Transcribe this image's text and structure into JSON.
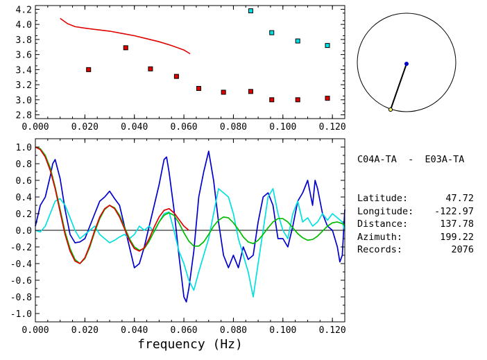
{
  "station_pair": "C04A-TA  -  E03A-TA",
  "info": [
    {
      "label": "Latitude:",
      "value": "47.72"
    },
    {
      "label": "Longitude:",
      "value": "-122.97"
    },
    {
      "label": "Distance:",
      "value": "137.78"
    },
    {
      "label": "Azimuth:",
      "value": "199.22"
    },
    {
      "label": "Records:",
      "value": "2076"
    }
  ],
  "colors": {
    "red": "#e00000",
    "blue": "#0000cc",
    "cyan": "#00e0e0",
    "green": "#00bb00",
    "black": "#000000",
    "yellow": "#ffff66"
  },
  "chart_data": [
    {
      "type": "scatter",
      "xlim": [
        0.0,
        0.125
      ],
      "ylim": [
        2.75,
        4.25
      ],
      "xticks": [
        "0.000",
        "0.020",
        "0.040",
        "0.060",
        "0.080",
        "0.100",
        "0.120"
      ],
      "yticks": [
        "2.8",
        "3.0",
        "3.2",
        "3.4",
        "3.6",
        "3.8",
        "4.0",
        "4.2"
      ],
      "series": [
        {
          "kind": "line",
          "color": "red",
          "x": [
            0.01,
            0.013,
            0.016,
            0.02,
            0.025,
            0.03,
            0.035,
            0.04,
            0.045,
            0.05,
            0.055,
            0.06,
            0.0625
          ],
          "y": [
            4.08,
            4.01,
            3.97,
            3.95,
            3.93,
            3.91,
            3.88,
            3.85,
            3.81,
            3.77,
            3.72,
            3.66,
            3.61
          ]
        },
        {
          "kind": "points",
          "color": "red",
          "x": [
            0.0215,
            0.0365,
            0.0465,
            0.057,
            0.066,
            0.076,
            0.087,
            0.0955,
            0.106,
            0.118
          ],
          "y": [
            3.4,
            3.69,
            3.41,
            3.31,
            3.15,
            3.1,
            3.11,
            3.0,
            3.0,
            3.02
          ]
        },
        {
          "kind": "points",
          "color": "cyan",
          "x": [
            0.087,
            0.0955,
            0.106,
            0.118
          ],
          "y": [
            4.18,
            3.89,
            3.78,
            3.72
          ]
        }
      ]
    },
    {
      "type": "line",
      "xlim": [
        0.0,
        0.125
      ],
      "ylim": [
        -1.1,
        1.1
      ],
      "xticks": [
        "0.000",
        "0.020",
        "0.040",
        "0.060",
        "0.080",
        "0.100",
        "0.120"
      ],
      "yticks": [
        "1.0",
        "0.8",
        "0.6",
        "0.4",
        "0.2",
        "0.0",
        "-0.2",
        "-0.4",
        "-0.6",
        "-0.8",
        "-1.0"
      ],
      "xlabel": "frequency (Hz)",
      "series": [
        {
          "color": "blue",
          "x": [
            0.0,
            0.002,
            0.004,
            0.006,
            0.007,
            0.008,
            0.01,
            0.012,
            0.014,
            0.016,
            0.018,
            0.02,
            0.022,
            0.024,
            0.026,
            0.028,
            0.03,
            0.032,
            0.034,
            0.036,
            0.038,
            0.04,
            0.042,
            0.044,
            0.046,
            0.048,
            0.05,
            0.052,
            0.053,
            0.054,
            0.056,
            0.058,
            0.06,
            0.061,
            0.062,
            0.064,
            0.066,
            0.068,
            0.07,
            0.072,
            0.074,
            0.076,
            0.078,
            0.08,
            0.082,
            0.084,
            0.086,
            0.088,
            0.09,
            0.092,
            0.094,
            0.096,
            0.098,
            0.1,
            0.102,
            0.104,
            0.106,
            0.108,
            0.11,
            0.112,
            0.113,
            0.114,
            0.116,
            0.118,
            0.12,
            0.122,
            0.123,
            0.124,
            0.125
          ],
          "y": [
            0.05,
            0.3,
            0.4,
            0.65,
            0.8,
            0.85,
            0.62,
            0.25,
            -0.05,
            -0.15,
            -0.14,
            -0.1,
            0.05,
            0.2,
            0.35,
            0.4,
            0.47,
            0.38,
            0.3,
            0.05,
            -0.2,
            -0.45,
            -0.4,
            -0.2,
            0.05,
            0.3,
            0.55,
            0.85,
            0.88,
            0.7,
            0.25,
            -0.3,
            -0.8,
            -0.86,
            -0.7,
            -0.25,
            0.4,
            0.7,
            0.95,
            0.6,
            0.1,
            -0.3,
            -0.45,
            -0.3,
            -0.45,
            -0.2,
            -0.35,
            -0.3,
            0.1,
            0.4,
            0.45,
            0.3,
            -0.1,
            -0.1,
            -0.2,
            0.05,
            0.35,
            0.45,
            0.6,
            0.3,
            0.6,
            0.5,
            0.2,
            0.05,
            0.0,
            -0.2,
            -0.38,
            -0.3,
            0.25
          ]
        },
        {
          "color": "cyan",
          "x": [
            0.0,
            0.002,
            0.004,
            0.006,
            0.008,
            0.01,
            0.012,
            0.014,
            0.016,
            0.018,
            0.02,
            0.022,
            0.024,
            0.026,
            0.028,
            0.03,
            0.032,
            0.034,
            0.036,
            0.038,
            0.04,
            0.042,
            0.044,
            0.046,
            0.048,
            0.05,
            0.052,
            0.054,
            0.056,
            0.058,
            0.06,
            0.062,
            0.064,
            0.066,
            0.068,
            0.07,
            0.072,
            0.074,
            0.076,
            0.078,
            0.08,
            0.082,
            0.084,
            0.086,
            0.088,
            0.09,
            0.092,
            0.094,
            0.096,
            0.098,
            0.1,
            0.102,
            0.104,
            0.106,
            0.108,
            0.11,
            0.112,
            0.114,
            0.116,
            0.118,
            0.12,
            0.122,
            0.124,
            0.125
          ],
          "y": [
            0.0,
            -0.02,
            0.05,
            0.2,
            0.35,
            0.38,
            0.3,
            0.15,
            0.0,
            -0.1,
            -0.05,
            0.0,
            0.05,
            -0.05,
            -0.1,
            -0.15,
            -0.12,
            -0.08,
            -0.05,
            -0.1,
            -0.05,
            0.05,
            0.0,
            0.05,
            -0.02,
            0.1,
            0.2,
            0.22,
            0.0,
            -0.25,
            -0.4,
            -0.6,
            -0.72,
            -0.5,
            -0.3,
            -0.1,
            0.2,
            0.5,
            0.45,
            0.4,
            0.2,
            -0.1,
            -0.3,
            -0.5,
            -0.8,
            -0.4,
            0.0,
            0.4,
            0.5,
            0.2,
            0.0,
            -0.1,
            0.2,
            0.35,
            0.1,
            0.15,
            0.05,
            0.1,
            0.2,
            0.12,
            0.2,
            0.15,
            0.1,
            0.0
          ]
        },
        {
          "color": "green",
          "x": [
            0.0,
            0.002,
            0.004,
            0.006,
            0.008,
            0.01,
            0.012,
            0.014,
            0.016,
            0.018,
            0.02,
            0.022,
            0.024,
            0.026,
            0.028,
            0.03,
            0.032,
            0.034,
            0.036,
            0.038,
            0.04,
            0.042,
            0.044,
            0.046,
            0.048,
            0.05,
            0.052,
            0.054,
            0.056,
            0.058,
            0.06,
            0.062,
            0.064,
            0.066,
            0.068,
            0.07,
            0.072,
            0.074,
            0.076,
            0.078,
            0.08,
            0.082,
            0.084,
            0.086,
            0.088,
            0.09,
            0.092,
            0.094,
            0.096,
            0.098,
            0.1,
            0.102,
            0.104,
            0.106,
            0.108,
            0.11,
            0.112,
            0.114,
            0.116,
            0.118,
            0.12,
            0.122,
            0.124,
            0.125
          ],
          "y": [
            1.0,
            0.98,
            0.9,
            0.75,
            0.52,
            0.25,
            -0.02,
            -0.22,
            -0.35,
            -0.4,
            -0.34,
            -0.2,
            -0.02,
            0.14,
            0.25,
            0.3,
            0.27,
            0.18,
            0.04,
            -0.1,
            -0.2,
            -0.24,
            -0.22,
            -0.13,
            -0.01,
            0.1,
            0.18,
            0.21,
            0.18,
            0.09,
            -0.03,
            -0.13,
            -0.19,
            -0.19,
            -0.14,
            -0.05,
            0.05,
            0.12,
            0.16,
            0.15,
            0.09,
            0.01,
            -0.08,
            -0.14,
            -0.16,
            -0.12,
            -0.05,
            0.03,
            0.1,
            0.14,
            0.14,
            0.1,
            0.03,
            -0.04,
            -0.09,
            -0.12,
            -0.11,
            -0.07,
            -0.01,
            0.05,
            0.09,
            0.1,
            0.08,
            0.06
          ]
        },
        {
          "color": "red",
          "x": [
            0.0,
            0.002,
            0.004,
            0.006,
            0.008,
            0.01,
            0.012,
            0.014,
            0.016,
            0.018,
            0.02,
            0.022,
            0.024,
            0.026,
            0.028,
            0.03,
            0.032,
            0.034,
            0.036,
            0.038,
            0.04,
            0.042,
            0.044,
            0.046,
            0.048,
            0.05,
            0.052,
            0.054,
            0.056,
            0.058,
            0.06,
            0.062
          ],
          "y": [
            1.0,
            0.97,
            0.88,
            0.72,
            0.5,
            0.22,
            -0.05,
            -0.25,
            -0.37,
            -0.4,
            -0.33,
            -0.18,
            0.0,
            0.16,
            0.26,
            0.3,
            0.26,
            0.16,
            0.02,
            -0.12,
            -0.22,
            -0.25,
            -0.21,
            -0.1,
            0.04,
            0.16,
            0.24,
            0.26,
            0.21,
            0.13,
            0.05,
            0.0
          ]
        }
      ]
    }
  ],
  "map_inset": {
    "circle_color": "black",
    "line_color": "black",
    "center_dot_color": "blue",
    "outer_dot_color": "yellow",
    "azimuth_deg": 199.22
  }
}
